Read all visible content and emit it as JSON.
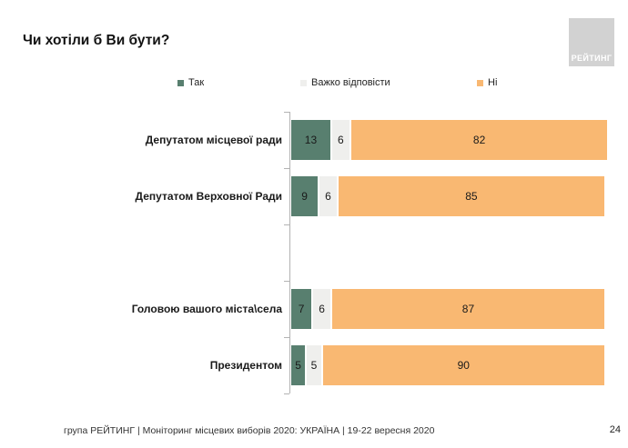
{
  "page": {
    "title": "Чи хотіли б Ви бути?",
    "logo_text": "РЕЙТИНГ",
    "footer": "група РЕЙТИНГ | Моніторинг місцевих виборів 2020: УКРАЇНА | 19-22 вересня 2020",
    "page_number": "24"
  },
  "colors": {
    "yes": "#587f6f",
    "hard_to_answer": "#efefed",
    "no": "#f9b872",
    "logo_bg": "#d2d2d2",
    "axis": "#b3b3b3"
  },
  "chart_data": {
    "type": "bar",
    "orientation": "horizontal",
    "stacked": true,
    "title": "Чи хотіли б Ви бути?",
    "categories": [
      "Депутатом місцевої ради",
      "Депутатом Верховної Ради",
      "",
      "Головою вашого міста\\села",
      "Президентом"
    ],
    "series": [
      {
        "name": "Так",
        "key": "yes",
        "color": "#587f6f",
        "values": [
          13,
          9,
          null,
          7,
          5
        ]
      },
      {
        "name": "Важко відповісти",
        "key": "hard-to-answer",
        "color": "#efefed",
        "values": [
          6,
          6,
          null,
          6,
          5
        ]
      },
      {
        "name": "Ні",
        "key": "no",
        "color": "#f9b872",
        "values": [
          82,
          85,
          null,
          87,
          90
        ]
      }
    ],
    "xlim": [
      0,
      100
    ],
    "legend_position": "top",
    "value_labels": "inside",
    "grid": false
  }
}
